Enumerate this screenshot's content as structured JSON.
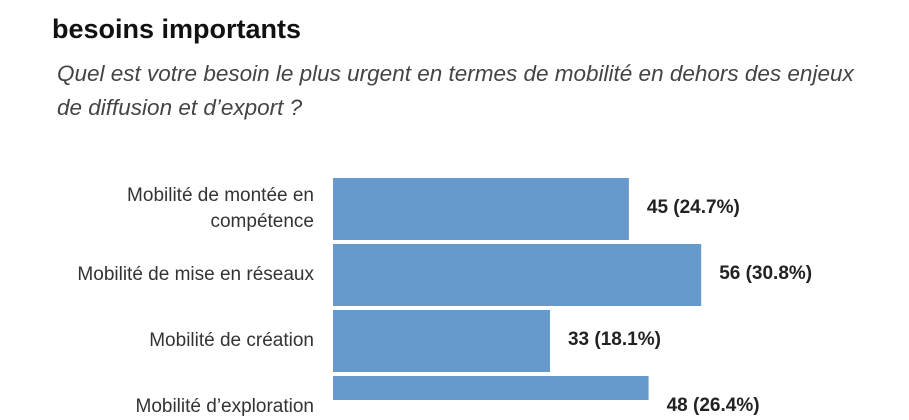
{
  "chart_data": {
    "type": "bar",
    "orientation": "horizontal",
    "title": "besoins importants",
    "subtitle": "Quel est votre besoin le plus urgent en termes de mobilité en dehors des enjeux de diffusion et d’export ?",
    "categories": [
      "Mobilité de montée en compétence",
      "Mobilité de mise en réseaux",
      "Mobilité de création",
      "Mobilité d’exploration"
    ],
    "values": [
      45,
      56,
      33,
      48
    ],
    "value_labels": [
      "45 (24.7%)",
      "56 (30.8%)",
      "33 (18.1%)",
      "48 (26.4%)"
    ],
    "color": "#6699cc"
  }
}
